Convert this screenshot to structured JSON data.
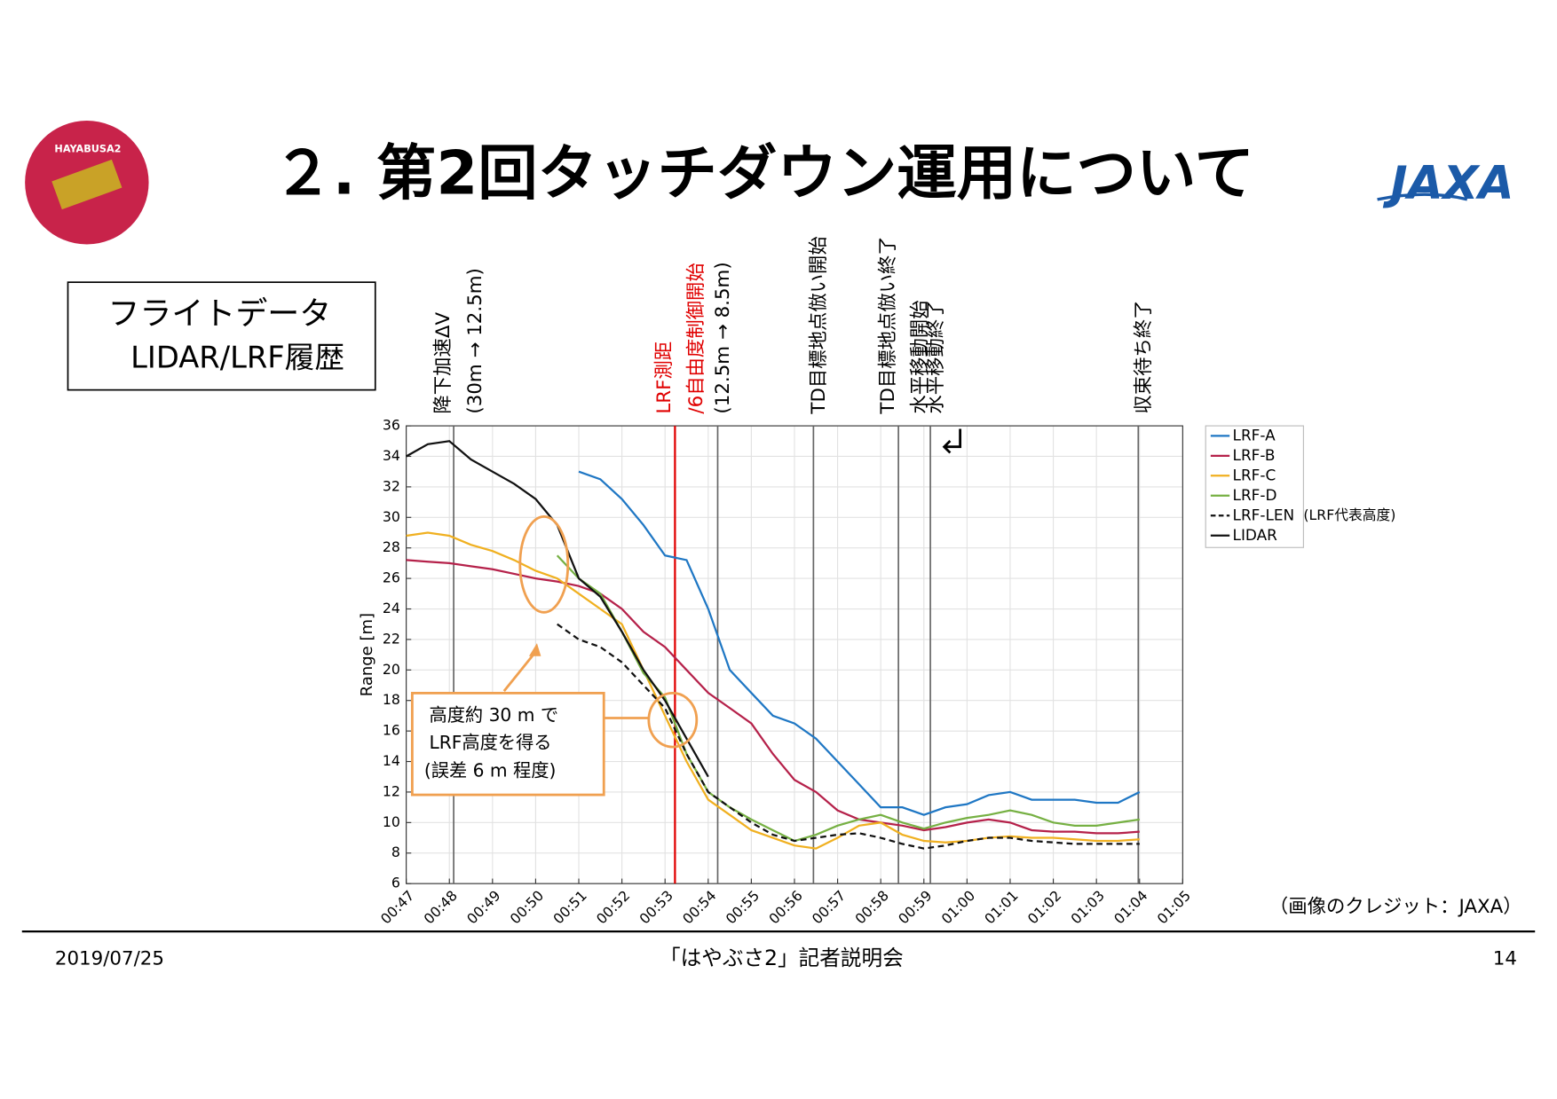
{
  "header": {
    "title": "２. 第2回タッチダウン運用について",
    "logo_left": "HAYABUSA2",
    "logo_right": "JAXA"
  },
  "label_box": {
    "lines": [
      "フライトデータ",
      "LIDAR/LRF履歴"
    ]
  },
  "chart_data": {
    "type": "line",
    "ylabel": "Range [m]",
    "x": [
      47,
      47.5,
      48,
      48.5,
      49,
      49.5,
      50,
      50.5,
      51,
      51.5,
      52,
      52.5,
      53,
      53.5,
      54,
      54.5,
      55,
      55.5,
      56,
      56.5,
      57,
      57.5,
      58,
      58.5,
      59,
      59.5,
      60,
      60.5,
      61,
      61.5,
      62,
      62.5,
      63,
      63.5,
      64
    ],
    "xlim": [
      47,
      65
    ],
    "xticks": [
      {
        "value": 47,
        "label": "00:47"
      },
      {
        "value": 48,
        "label": "00:48"
      },
      {
        "value": 49,
        "label": "00:49"
      },
      {
        "value": 50,
        "label": "00:50"
      },
      {
        "value": 51,
        "label": "00:51"
      },
      {
        "value": 52,
        "label": "00:52"
      },
      {
        "value": 53,
        "label": "00:53"
      },
      {
        "value": 54,
        "label": "00:54"
      },
      {
        "value": 55,
        "label": "00:55"
      },
      {
        "value": 56,
        "label": "00:56"
      },
      {
        "value": 57,
        "label": "00:57"
      },
      {
        "value": 58,
        "label": "00:58"
      },
      {
        "value": 59,
        "label": "00:59"
      },
      {
        "value": 60,
        "label": "01:00"
      },
      {
        "value": 61,
        "label": "01:01"
      },
      {
        "value": 62,
        "label": "01:02"
      },
      {
        "value": 63,
        "label": "01:03"
      },
      {
        "value": 64,
        "label": "01:04"
      },
      {
        "value": 65,
        "label": "01:05"
      }
    ],
    "ylim": [
      6,
      36
    ],
    "yticks": [
      6,
      8,
      10,
      12,
      14,
      16,
      18,
      20,
      22,
      24,
      26,
      28,
      30,
      32,
      34,
      36
    ],
    "grid": true,
    "series": [
      {
        "name": "LRF-A",
        "color": "#1f77c4",
        "values": [
          null,
          null,
          null,
          null,
          null,
          null,
          null,
          null,
          33,
          32.5,
          31.2,
          29.5,
          27.5,
          27.2,
          24,
          20,
          18.5,
          17,
          16.5,
          15.5,
          14,
          12.5,
          11,
          11,
          10.5,
          11,
          11.2,
          11.8,
          12,
          11.5,
          11.5,
          11.5,
          11.3,
          11.3,
          12
        ]
      },
      {
        "name": "LRF-B",
        "color": "#b5214a",
        "values": [
          27.2,
          27.1,
          27,
          26.8,
          26.6,
          26.3,
          26,
          25.8,
          25.5,
          25,
          24,
          22.5,
          21.5,
          20,
          18.5,
          17.5,
          16.5,
          14.5,
          12.8,
          12,
          10.8,
          10.2,
          10,
          9.8,
          9.5,
          9.7,
          10,
          10.2,
          10,
          9.5,
          9.4,
          9.4,
          9.3,
          9.3,
          9.4
        ]
      },
      {
        "name": "LRF-C",
        "color": "#f0b020",
        "values": [
          28.8,
          29,
          28.8,
          28.2,
          27.8,
          27.2,
          26.5,
          26,
          25,
          24,
          23,
          20,
          17,
          14,
          11.5,
          10.5,
          9.5,
          9,
          8.5,
          8.3,
          9,
          9.8,
          10,
          9.2,
          8.8,
          8.7,
          8.8,
          9.0,
          9.1,
          9.0,
          9.0,
          8.9,
          8.8,
          8.8,
          8.9
        ]
      },
      {
        "name": "LRF-D",
        "color": "#76b043",
        "values": [
          null,
          null,
          null,
          null,
          null,
          null,
          null,
          27.5,
          26,
          25,
          22.5,
          19.8,
          18.2,
          14.5,
          12,
          11,
          10.2,
          9.5,
          8.8,
          9.2,
          9.8,
          10.2,
          10.5,
          10,
          9.6,
          10,
          10.3,
          10.5,
          10.8,
          10.5,
          10,
          9.8,
          9.8,
          10,
          10.2
        ]
      },
      {
        "name": "LRF-LEN",
        "color": "#111111",
        "dash": true,
        "values": [
          null,
          null,
          null,
          null,
          null,
          null,
          null,
          23,
          22,
          21.5,
          20.5,
          19,
          17.5,
          14.5,
          12,
          11,
          10,
          9.2,
          8.8,
          9,
          9.2,
          9.3,
          9,
          8.6,
          8.3,
          8.5,
          8.8,
          9.0,
          9.0,
          8.8,
          8.7,
          8.6,
          8.6,
          8.6,
          8.6
        ]
      },
      {
        "name": "LIDAR",
        "color": "#111111",
        "values": [
          34,
          34.8,
          35,
          33.8,
          33,
          32.2,
          31.2,
          29.5,
          26,
          24.8,
          22.5,
          20,
          18,
          15.5,
          13,
          null,
          null,
          null,
          null,
          null,
          null,
          null,
          null,
          null,
          null,
          null,
          null,
          null,
          null,
          null,
          null,
          null,
          null,
          null,
          null
        ]
      }
    ],
    "legend_note": "(LRF代表高度)",
    "events": [
      {
        "time": 48.1,
        "color": "#666666",
        "lines": [
          "降下加速ΔV",
          "(30m → 12.5m)"
        ]
      },
      {
        "time": 53.23,
        "color": "#e00000",
        "lines": [
          "LRF測距",
          "/6自由度制御開始"
        ]
      },
      {
        "time": 54.22,
        "color": "#666666",
        "lines": [
          "(12.5m → 8.5m)"
        ]
      },
      {
        "time": 56.44,
        "color": "#666666",
        "lines": [
          "TD目標地点倣い開始"
        ]
      },
      {
        "time": 58.41,
        "color": "#666666",
        "lines": [
          "TD目標地点倣い終了",
          "水平移動開始"
        ]
      },
      {
        "time": 59.15,
        "color": "#666666",
        "lines": [
          "水平移動終了"
        ]
      },
      {
        "time": 63.97,
        "color": "#666666",
        "lines": [
          "収束待ち終了"
        ]
      }
    ],
    "annotation": {
      "lines": [
        "高度約 30 m で",
        "LRF高度を得る",
        "(誤差 6 m 程度)"
      ]
    }
  },
  "credit": "（画像のクレジット：JAXA）",
  "footer": {
    "date": "2019/07/25",
    "center": "「はやぶさ2」記者説明会",
    "page": "14"
  }
}
